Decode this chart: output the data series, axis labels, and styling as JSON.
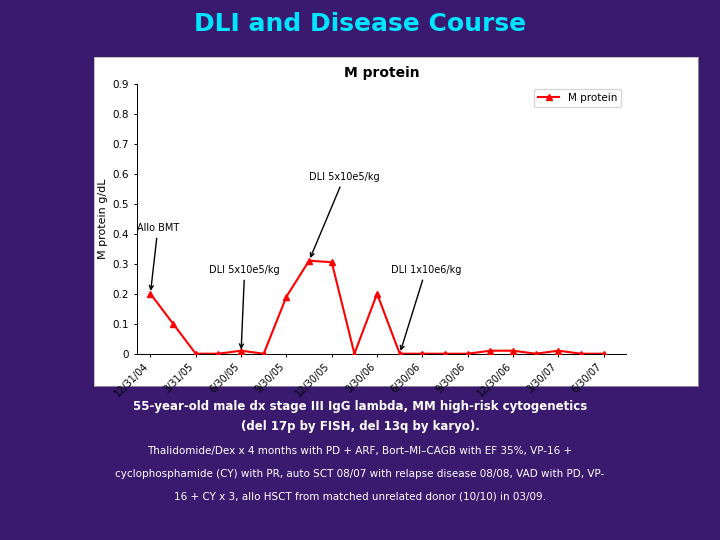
{
  "title": "DLI and Disease Course",
  "chart_title": "M protein",
  "ylabel": "M protein g/dL",
  "line_color": "#FF0000",
  "marker": "^",
  "marker_color": "#FF0000",
  "background_outer": "#3a1a6e",
  "background_chart": "#ffffff",
  "title_color": "#00e5ff",
  "x_labels": [
    "12/31/04",
    "3/31/05",
    "6/30/05",
    "9/30/05",
    "12/30/05",
    "3/30/06",
    "6/30/06",
    "9/30/06",
    "12/30/06",
    "3/30/07",
    "6/30/07"
  ],
  "y_values": [
    0.2,
    0.1,
    0.0,
    0.0,
    0.01,
    0.0,
    0.19,
    0.31,
    0.305,
    0.0,
    0.2,
    0.0,
    0.0,
    0.0,
    0.0,
    0.01,
    0.01,
    0.0,
    0.01,
    0.0,
    0.0
  ],
  "x_indices": [
    0,
    0.5,
    1,
    1.5,
    2,
    2.5,
    3,
    3.5,
    4,
    4.5,
    5,
    5.5,
    6,
    6.5,
    7,
    7.5,
    8,
    8.5,
    9,
    9.5,
    10
  ],
  "ylim": [
    0,
    0.9
  ],
  "yticks": [
    0,
    0.1,
    0.2,
    0.3,
    0.4,
    0.5,
    0.6,
    0.7,
    0.8,
    0.9
  ],
  "legend_label": "M protein",
  "bottom_text_line1": "55-year-old male dx stage III IgG lambda, MM high-risk cytogenetics",
  "bottom_text_line2": "(del 17p by FISH, del 13q by karyo).",
  "bottom_text_line3": "Thalidomide/Dex x 4 months with PD + ARF, Bort–MI–CAGB with EF 35%, VP-16 +",
  "bottom_text_line4": "cyclophosphamide (CY) with PR, auto SCT 08/07 with relapse disease 08/08, VAD with PD, VP-",
  "bottom_text_line5": "16 + CY x 3, allo HSCT from matched unrelated donor (10/10) in 03/09."
}
